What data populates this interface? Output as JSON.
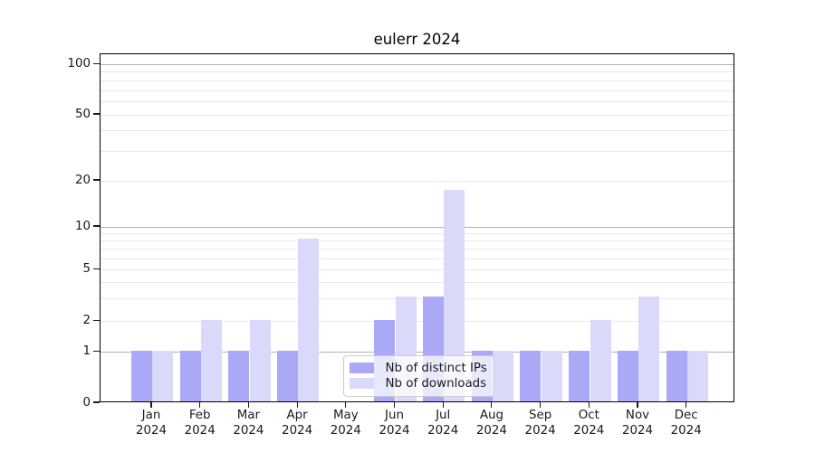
{
  "title": "eulerr 2024",
  "colors": {
    "distinct_ips_bar": "#a9a9f8",
    "downloads_bar": "#d9d9fa",
    "grid_major": "#b2b2b2",
    "grid_minor": "#e9e9e9",
    "axis": "#000000"
  },
  "legend": {
    "items": [
      {
        "label": "Nb of distinct IPs",
        "color": "#a9a9f8"
      },
      {
        "label": "Nb of downloads",
        "color": "#d9d9fa"
      }
    ]
  },
  "chart_data": {
    "type": "bar",
    "title": "eulerr 2024",
    "categories": [
      "Jan",
      "Feb",
      "Mar",
      "Apr",
      "May",
      "Jun",
      "Jul",
      "Aug",
      "Sep",
      "Oct",
      "Nov",
      "Dec"
    ],
    "category_year": "2024",
    "series": [
      {
        "name": "Nb of distinct IPs",
        "color": "#a9a9f8",
        "values": [
          1,
          1,
          1,
          1,
          0,
          2,
          3,
          1,
          1,
          1,
          1,
          1
        ]
      },
      {
        "name": "Nb of downloads",
        "color": "#d9d9fa",
        "values": [
          1,
          2,
          2,
          8,
          0,
          3,
          17,
          1,
          1,
          2,
          3,
          1
        ]
      }
    ],
    "xlabel": "",
    "ylabel": "",
    "y_axis": {
      "scale": "log-like",
      "tick_values": [
        0,
        1,
        2,
        5,
        10,
        20,
        50,
        100
      ],
      "major_gridlines": [
        1,
        10,
        100
      ],
      "minor_gridlines": [
        2,
        3,
        4,
        5,
        6,
        7,
        8,
        9,
        20,
        30,
        40,
        50,
        60,
        70,
        80,
        90
      ],
      "ylim": [
        0,
        115
      ]
    },
    "grid": true,
    "legend_position": "lower center"
  }
}
